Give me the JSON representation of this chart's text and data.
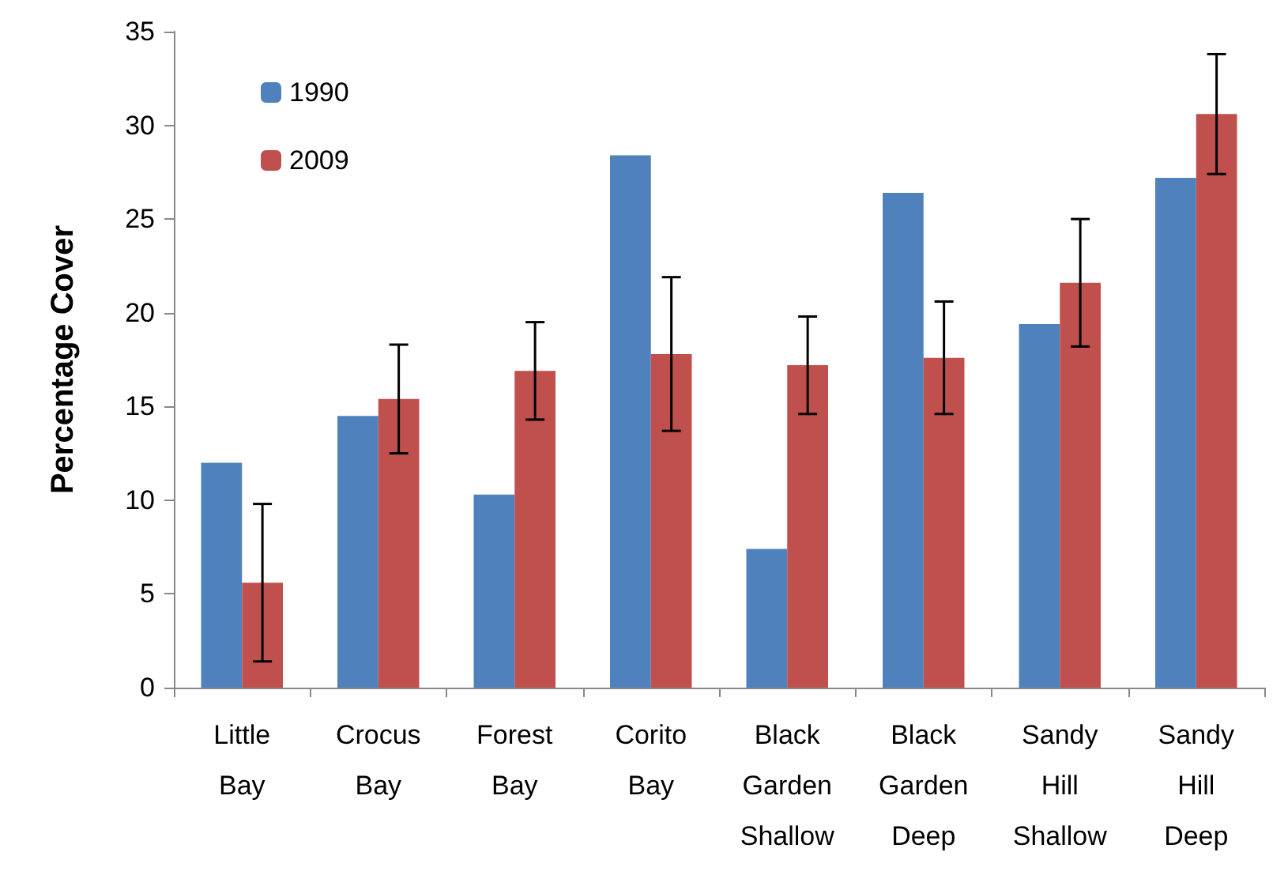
{
  "chart_data": {
    "type": "bar",
    "ylabel": "Percentage Cover",
    "categories": [
      "Little Bay",
      "Crocus Bay",
      "Forest Bay",
      "Corito Bay",
      "Black Garden Shallow",
      "Black Garden Deep",
      "Sandy Hill Shallow",
      "Sandy Hill Deep"
    ],
    "series": [
      {
        "name": "1990",
        "color": "#4f81bd",
        "values": [
          12.0,
          14.5,
          10.3,
          28.4,
          7.4,
          26.4,
          19.4,
          27.2
        ]
      },
      {
        "name": "2009",
        "color": "#c0504d",
        "values": [
          5.6,
          15.4,
          16.9,
          17.8,
          17.2,
          17.6,
          21.6,
          30.6
        ],
        "errors": [
          4.2,
          2.9,
          2.6,
          4.1,
          2.6,
          3.0,
          3.4,
          3.2
        ]
      }
    ],
    "ylim": [
      0,
      35
    ],
    "yticks": [
      0,
      5,
      10,
      15,
      20,
      25,
      30,
      35
    ],
    "grid": false,
    "legend": "top left"
  }
}
